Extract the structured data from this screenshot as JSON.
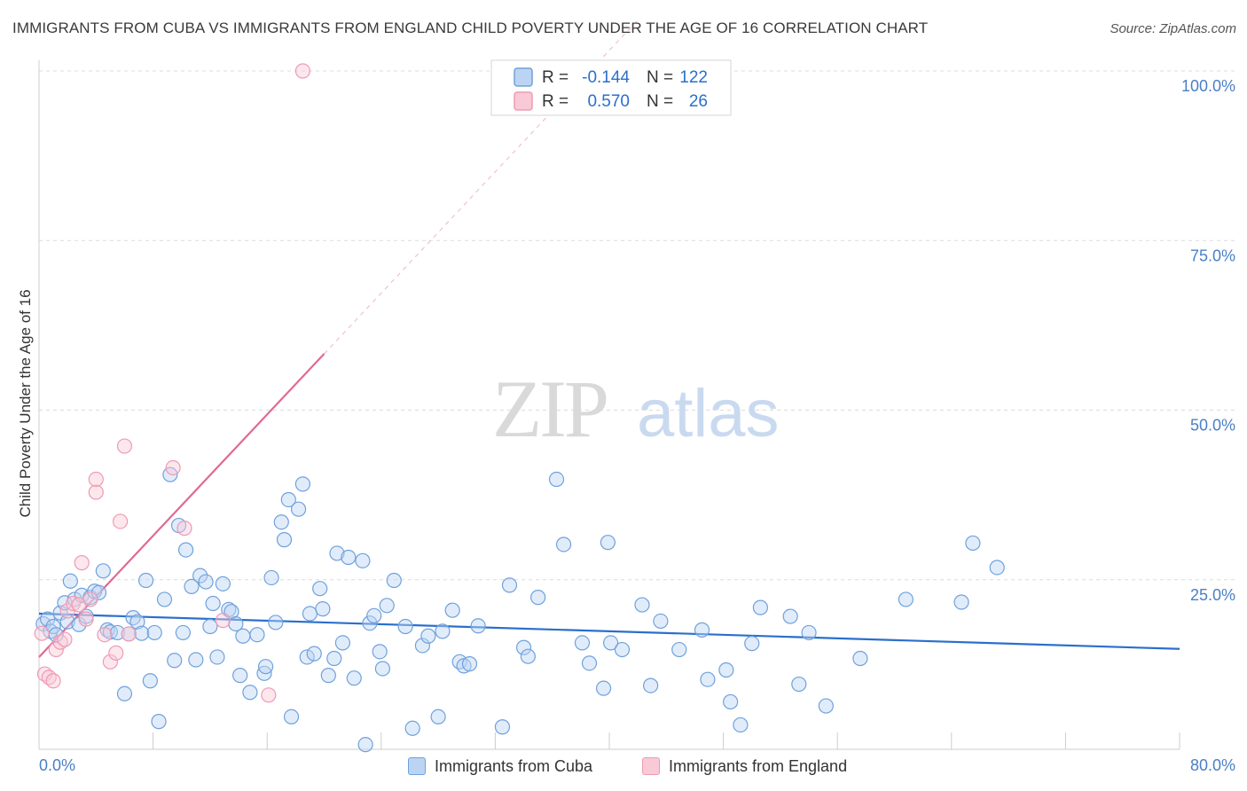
{
  "chart_data": {
    "type": "scatter",
    "title": "IMMIGRANTS FROM CUBA VS IMMIGRANTS FROM ENGLAND CHILD POVERTY UNDER THE AGE OF 16 CORRELATION CHART",
    "source": "Source: ZipAtlas.com",
    "xlabel": "",
    "ylabel": "Child Poverty Under the Age of 16",
    "xlim": [
      0,
      80
    ],
    "ylim": [
      0,
      100
    ],
    "x_tick_labels": [
      "0.0%",
      "80.0%"
    ],
    "y_ticks": [
      25,
      50,
      75,
      100
    ],
    "y_tick_labels": [
      "25.0%",
      "50.0%",
      "75.0%",
      "100.0%"
    ],
    "watermark": {
      "zip": "ZIP",
      "atlas": "atlas"
    },
    "stats_legend": [
      {
        "r_label": "R =",
        "r_value": "-0.144",
        "n_label": "N =",
        "n_value": "122"
      },
      {
        "r_label": "R =",
        "r_value": "0.570",
        "n_label": "N =",
        "n_value": "26"
      }
    ],
    "series": [
      {
        "name": "Immigrants from Cuba",
        "color": "#6fa1dc",
        "fill": "#bcd4f3",
        "line_color": "#2a6fcc",
        "trend": {
          "x": [
            0,
            80
          ],
          "y": [
            20.0,
            14.8
          ],
          "dashed_to": null
        },
        "points": [
          [
            0.3,
            18.5
          ],
          [
            0.6,
            19.2
          ],
          [
            0.8,
            17.4
          ],
          [
            1.0,
            18.1
          ],
          [
            1.2,
            16.9
          ],
          [
            1.5,
            20.1
          ],
          [
            1.8,
            21.6
          ],
          [
            2.0,
            18.8
          ],
          [
            2.2,
            24.8
          ],
          [
            2.5,
            22.1
          ],
          [
            2.8,
            18.4
          ],
          [
            3.0,
            22.7
          ],
          [
            3.3,
            19.6
          ],
          [
            3.6,
            22.4
          ],
          [
            3.9,
            23.3
          ],
          [
            4.2,
            23.1
          ],
          [
            4.5,
            26.3
          ],
          [
            4.8,
            17.6
          ],
          [
            5.0,
            17.3
          ],
          [
            5.5,
            17.2
          ],
          [
            6.0,
            8.2
          ],
          [
            6.3,
            17.0
          ],
          [
            6.6,
            19.4
          ],
          [
            6.9,
            18.8
          ],
          [
            7.2,
            17.1
          ],
          [
            7.5,
            24.9
          ],
          [
            7.8,
            10.1
          ],
          [
            8.1,
            17.2
          ],
          [
            8.4,
            4.1
          ],
          [
            8.8,
            22.1
          ],
          [
            9.2,
            40.5
          ],
          [
            9.5,
            13.1
          ],
          [
            9.8,
            33.0
          ],
          [
            10.1,
            17.2
          ],
          [
            10.3,
            29.4
          ],
          [
            10.7,
            24.0
          ],
          [
            11.0,
            13.2
          ],
          [
            11.3,
            25.6
          ],
          [
            11.7,
            24.7
          ],
          [
            12.0,
            18.1
          ],
          [
            12.2,
            21.5
          ],
          [
            12.5,
            13.6
          ],
          [
            12.9,
            24.4
          ],
          [
            13.3,
            20.6
          ],
          [
            13.5,
            20.3
          ],
          [
            13.8,
            18.5
          ],
          [
            14.1,
            10.9
          ],
          [
            14.3,
            16.7
          ],
          [
            14.8,
            8.4
          ],
          [
            15.3,
            16.9
          ],
          [
            15.8,
            11.2
          ],
          [
            15.9,
            12.2
          ],
          [
            16.3,
            25.3
          ],
          [
            16.6,
            18.7
          ],
          [
            17.0,
            33.5
          ],
          [
            17.2,
            30.9
          ],
          [
            17.5,
            36.8
          ],
          [
            17.7,
            4.8
          ],
          [
            18.2,
            35.4
          ],
          [
            18.5,
            39.1
          ],
          [
            18.8,
            13.6
          ],
          [
            19.0,
            20.0
          ],
          [
            19.3,
            14.1
          ],
          [
            19.7,
            23.7
          ],
          [
            19.9,
            20.7
          ],
          [
            20.3,
            10.9
          ],
          [
            20.7,
            13.4
          ],
          [
            20.9,
            28.9
          ],
          [
            21.3,
            15.7
          ],
          [
            21.7,
            28.3
          ],
          [
            22.1,
            10.5
          ],
          [
            22.7,
            27.8
          ],
          [
            22.9,
            0.7
          ],
          [
            23.2,
            18.6
          ],
          [
            23.5,
            19.7
          ],
          [
            23.9,
            14.4
          ],
          [
            24.1,
            11.9
          ],
          [
            24.4,
            21.2
          ],
          [
            24.9,
            24.9
          ],
          [
            25.7,
            18.1
          ],
          [
            26.2,
            3.1
          ],
          [
            26.9,
            15.3
          ],
          [
            27.3,
            16.7
          ],
          [
            28.0,
            4.8
          ],
          [
            28.3,
            17.4
          ],
          [
            29.0,
            20.5
          ],
          [
            29.5,
            12.9
          ],
          [
            29.8,
            12.3
          ],
          [
            30.2,
            12.6
          ],
          [
            30.8,
            18.2
          ],
          [
            32.5,
            3.3
          ],
          [
            33.0,
            24.2
          ],
          [
            34.0,
            15.0
          ],
          [
            34.3,
            13.7
          ],
          [
            35.0,
            22.4
          ],
          [
            36.3,
            39.8
          ],
          [
            36.8,
            30.2
          ],
          [
            38.1,
            15.7
          ],
          [
            38.6,
            12.7
          ],
          [
            39.6,
            9.0
          ],
          [
            39.9,
            30.5
          ],
          [
            40.1,
            15.7
          ],
          [
            40.9,
            14.7
          ],
          [
            42.3,
            21.3
          ],
          [
            42.9,
            9.4
          ],
          [
            43.6,
            18.9
          ],
          [
            44.9,
            14.7
          ],
          [
            46.5,
            17.6
          ],
          [
            46.9,
            10.3
          ],
          [
            48.2,
            11.7
          ],
          [
            48.5,
            7.0
          ],
          [
            49.2,
            3.6
          ],
          [
            50.0,
            15.6
          ],
          [
            50.6,
            20.9
          ],
          [
            52.7,
            19.6
          ],
          [
            53.3,
            9.6
          ],
          [
            54.0,
            17.2
          ],
          [
            55.2,
            6.4
          ],
          [
            57.6,
            13.4
          ],
          [
            60.8,
            22.1
          ],
          [
            64.7,
            21.7
          ],
          [
            65.5,
            30.4
          ],
          [
            67.2,
            26.8
          ]
        ]
      },
      {
        "name": "Immigrants from England",
        "color": "#ef9ab5",
        "fill": "#f8c9d6",
        "line_color": "#e06a93",
        "trend": {
          "x": [
            0,
            20
          ],
          "y": [
            13.6,
            58.3
          ],
          "dashed_to": [
            42,
            107.5
          ]
        },
        "points": [
          [
            0.2,
            17.1
          ],
          [
            0.4,
            11.1
          ],
          [
            0.7,
            10.6
          ],
          [
            1.0,
            10.1
          ],
          [
            1.2,
            14.7
          ],
          [
            1.5,
            15.8
          ],
          [
            1.8,
            16.2
          ],
          [
            2.0,
            20.4
          ],
          [
            2.4,
            21.5
          ],
          [
            2.8,
            21.3
          ],
          [
            3.0,
            27.5
          ],
          [
            3.3,
            19.2
          ],
          [
            3.6,
            22.1
          ],
          [
            4.0,
            37.9
          ],
          [
            4.0,
            39.8
          ],
          [
            4.6,
            16.9
          ],
          [
            5.0,
            12.9
          ],
          [
            5.4,
            14.2
          ],
          [
            5.7,
            33.6
          ],
          [
            6.0,
            44.7
          ],
          [
            6.3,
            17.0
          ],
          [
            9.4,
            41.5
          ],
          [
            10.2,
            32.6
          ],
          [
            12.9,
            19.0
          ],
          [
            16.1,
            8.0
          ],
          [
            18.5,
            100.0
          ]
        ]
      }
    ]
  }
}
